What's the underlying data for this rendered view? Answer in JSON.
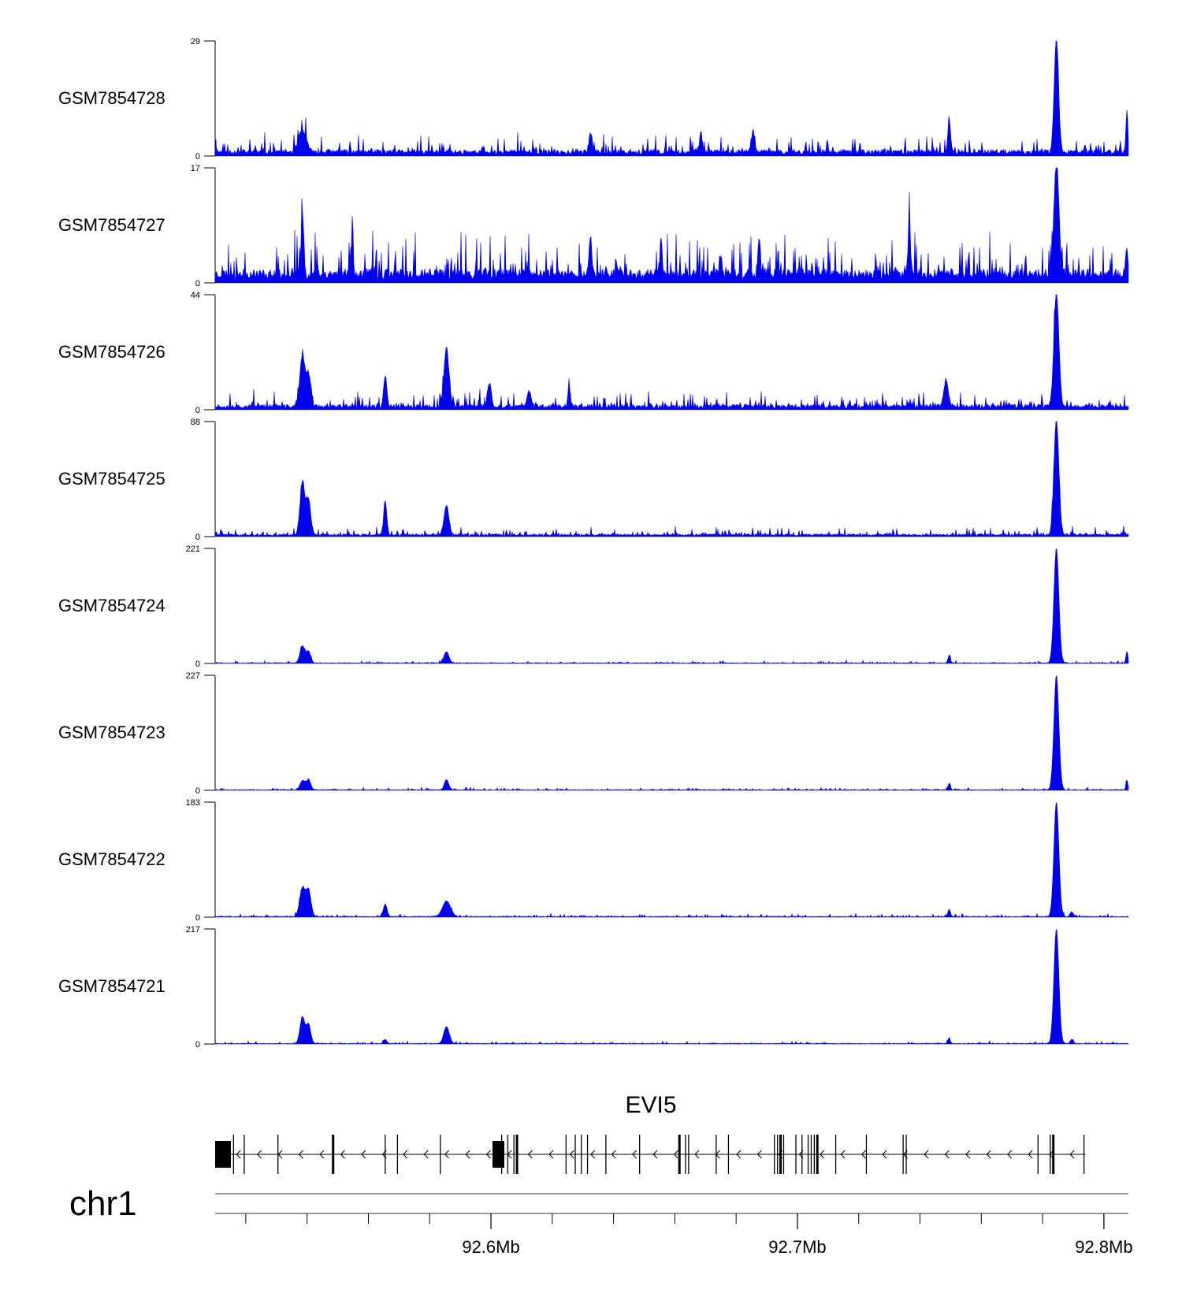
{
  "chart_data": {
    "type": "area",
    "chromosome": "chr1",
    "region_mb": [
      92.51,
      92.808
    ],
    "track_color": "#0000ee",
    "x_ticks": [
      92.6,
      92.7,
      92.8
    ],
    "x_tick_labels": [
      "92.6Mb",
      "92.7Mb",
      "92.8Mb"
    ],
    "gene": {
      "name": "EVI5",
      "strand": "-",
      "start_mb": 92.511,
      "end_mb": 92.794,
      "exons_mb": [
        92.516,
        92.5195,
        92.5305,
        92.5485,
        92.5655,
        92.5695,
        92.5835,
        92.6035,
        92.6055,
        92.6075,
        92.6085,
        92.6245,
        92.6275,
        92.6295,
        92.6315,
        92.6375,
        92.6485,
        92.6615,
        92.6635,
        92.6645,
        92.6735,
        92.6775,
        92.6925,
        92.6935,
        92.6945,
        92.6955,
        92.6995,
        92.7015,
        92.7035,
        92.7045,
        92.7055,
        92.7065,
        92.7125,
        92.7225,
        92.7345,
        92.7355,
        92.7785,
        92.7825,
        92.7835,
        92.7935
      ]
    },
    "tracks": [
      {
        "name": "GSM7854728",
        "ylim": [
          0,
          29
        ],
        "baseline": 1.2,
        "noise": 2.5,
        "seed": 11,
        "peaks": [
          [
            92.5385,
            5.5,
            0.0012
          ],
          [
            92.6325,
            5.0,
            0.0005
          ],
          [
            92.6685,
            4.0,
            0.0005
          ],
          [
            92.6855,
            5.0,
            0.0005
          ],
          [
            92.7495,
            9.0,
            0.0004
          ],
          [
            92.7845,
            29,
            0.0007
          ],
          [
            92.8075,
            11,
            0.0003
          ]
        ]
      },
      {
        "name": "GSM7854727",
        "ylim": [
          0,
          17
        ],
        "baseline": 1.5,
        "noise": 3.5,
        "seed": 23,
        "peaks": [
          [
            92.5385,
            8.5,
            0.0004
          ],
          [
            92.5545,
            4.5,
            0.0005
          ],
          [
            92.6325,
            6.2,
            0.0004
          ],
          [
            92.6555,
            5.0,
            0.0004
          ],
          [
            92.6875,
            5.5,
            0.0004
          ],
          [
            92.7365,
            7.6,
            0.0004
          ],
          [
            92.7845,
            17,
            0.0008
          ],
          [
            92.8075,
            3.5,
            0.0004
          ]
        ]
      },
      {
        "name": "GSM7854726",
        "ylim": [
          0,
          44
        ],
        "baseline": 1.5,
        "noise": 3.2,
        "seed": 37,
        "peaks": [
          [
            92.5385,
            20,
            0.0008
          ],
          [
            92.5405,
            12,
            0.0007
          ],
          [
            92.5655,
            12,
            0.0005
          ],
          [
            92.5855,
            22,
            0.0008
          ],
          [
            92.5995,
            9,
            0.0006
          ],
          [
            92.6125,
            6,
            0.0006
          ],
          [
            92.6255,
            8,
            0.0004
          ],
          [
            92.7485,
            10,
            0.0007
          ],
          [
            92.7845,
            44,
            0.0008
          ]
        ]
      },
      {
        "name": "GSM7854725",
        "ylim": [
          0,
          88
        ],
        "baseline": 1.5,
        "noise": 3.5,
        "seed": 41,
        "peaks": [
          [
            92.5385,
            40,
            0.0008
          ],
          [
            92.5405,
            27,
            0.0007
          ],
          [
            92.5655,
            26,
            0.0005
          ],
          [
            92.5855,
            22,
            0.0008
          ],
          [
            92.7845,
            88,
            0.0008
          ]
        ]
      },
      {
        "name": "GSM7854724",
        "ylim": [
          0,
          221
        ],
        "baseline": 1.0,
        "noise": 2.5,
        "seed": 53,
        "peaks": [
          [
            92.5385,
            33,
            0.0008
          ],
          [
            92.5405,
            22,
            0.0007
          ],
          [
            92.5855,
            22,
            0.0008
          ],
          [
            92.7495,
            14,
            0.0004
          ],
          [
            92.7845,
            221,
            0.0008
          ],
          [
            92.8075,
            22,
            0.0003
          ]
        ]
      },
      {
        "name": "GSM7854723",
        "ylim": [
          0,
          227
        ],
        "baseline": 1.0,
        "noise": 2.5,
        "seed": 67,
        "peaks": [
          [
            92.5385,
            18,
            0.0008
          ],
          [
            92.5405,
            20,
            0.0007
          ],
          [
            92.5855,
            20,
            0.0007
          ],
          [
            92.7495,
            12,
            0.0004
          ],
          [
            92.7845,
            227,
            0.0008
          ],
          [
            92.8075,
            20,
            0.0003
          ]
        ]
      },
      {
        "name": "GSM7854722",
        "ylim": [
          0,
          183
        ],
        "baseline": 1.0,
        "noise": 2.5,
        "seed": 79,
        "peaks": [
          [
            92.5385,
            45,
            0.0009
          ],
          [
            92.5405,
            40,
            0.0008
          ],
          [
            92.5655,
            20,
            0.0006
          ],
          [
            92.5855,
            25,
            0.0013
          ],
          [
            92.7495,
            12,
            0.0004
          ],
          [
            92.7845,
            183,
            0.0008
          ],
          [
            92.7895,
            8,
            0.0005
          ]
        ]
      },
      {
        "name": "GSM7854721",
        "ylim": [
          0,
          217
        ],
        "baseline": 1.0,
        "noise": 2.5,
        "seed": 89,
        "peaks": [
          [
            92.5385,
            50,
            0.0008
          ],
          [
            92.5405,
            36,
            0.0007
          ],
          [
            92.5655,
            8,
            0.0005
          ],
          [
            92.5855,
            32,
            0.0009
          ],
          [
            92.7495,
            10,
            0.0004
          ],
          [
            92.7845,
            217,
            0.0008
          ],
          [
            92.7895,
            8,
            0.0005
          ]
        ]
      }
    ]
  }
}
